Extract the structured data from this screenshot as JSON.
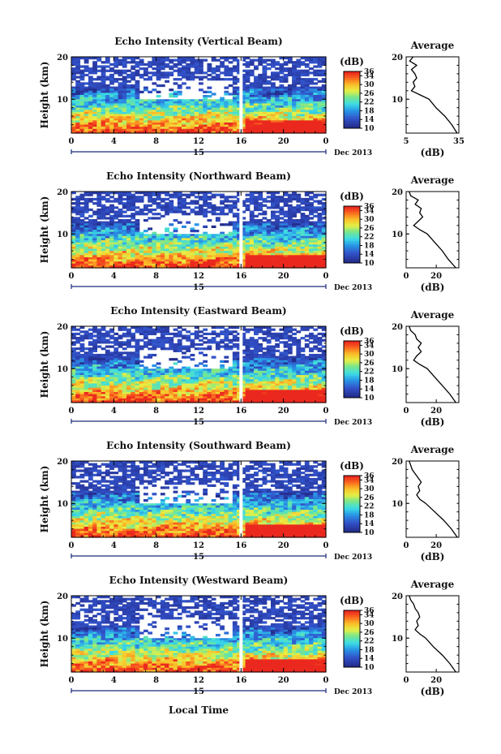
{
  "figure": {
    "shared_xlabel": "Local Time",
    "colorbar_unit": "(dB)",
    "colorbar_ticks": [
      "36",
      "34",
      "30",
      "26",
      "22",
      "18",
      "14",
      "10"
    ],
    "profile_title": "Average",
    "profile_xlabel": "(dB)",
    "ylabel": "Height (km)",
    "date_label": "Dec 2013",
    "day_label": "15"
  },
  "chart_data": [
    {
      "type": "heatmap",
      "title": "Echo Intensity (Vertical Beam)",
      "ylabel": "Height (km)",
      "xticks": [
        "0",
        "4",
        "8",
        "12",
        "16",
        "20",
        "0"
      ],
      "yticks": [
        "20",
        "10"
      ],
      "xlim": [
        0,
        24
      ],
      "ylim": [
        2,
        20
      ],
      "colorbar": {
        "label": "(dB)",
        "range": [
          10,
          36
        ],
        "ticks": [
          36,
          34,
          30,
          26,
          22,
          18,
          14,
          10
        ]
      },
      "profile": {
        "title": "Average",
        "xlabel": "(dB)",
        "xticks": [
          "5",
          "35"
        ],
        "xlim": [
          5,
          35
        ],
        "heights": [
          2,
          4,
          6,
          8,
          10,
          11,
          12,
          13,
          14,
          15,
          16,
          17,
          18,
          19,
          20
        ],
        "values": [
          34,
          31,
          27,
          22,
          18,
          13,
          8,
          10,
          9,
          11,
          10,
          8,
          11,
          7,
          9
        ]
      }
    },
    {
      "type": "heatmap",
      "title": "Echo Intensity (Northward Beam)",
      "ylabel": "Height (km)",
      "xticks": [
        "0",
        "4",
        "8",
        "12",
        "16",
        "20",
        "0"
      ],
      "yticks": [
        "20",
        "10"
      ],
      "xlim": [
        0,
        24
      ],
      "ylim": [
        2,
        20
      ],
      "colorbar": {
        "label": "(dB)",
        "range": [
          10,
          36
        ],
        "ticks": [
          36,
          34,
          30,
          26,
          22,
          18,
          14,
          10
        ]
      },
      "profile": {
        "title": "Average",
        "xlabel": "(dB)",
        "xticks": [
          "0",
          "20"
        ],
        "xlim": [
          0,
          35
        ],
        "heights": [
          2,
          4,
          6,
          8,
          10,
          11,
          12,
          13,
          14,
          15,
          16,
          17,
          18,
          19,
          20
        ],
        "values": [
          33,
          28,
          24,
          19,
          14,
          9,
          5,
          8,
          11,
          9,
          10,
          6,
          8,
          3,
          2
        ]
      }
    },
    {
      "type": "heatmap",
      "title": "Echo Intensity (Eastward Beam)",
      "ylabel": "Height (km)",
      "xticks": [
        "0",
        "4",
        "8",
        "12",
        "16",
        "20",
        "0"
      ],
      "yticks": [
        "20",
        "10"
      ],
      "xlim": [
        0,
        24
      ],
      "ylim": [
        2,
        20
      ],
      "colorbar": {
        "label": "(dB)",
        "range": [
          10,
          36
        ],
        "ticks": [
          36,
          34,
          30,
          26,
          22,
          18,
          14,
          10
        ]
      },
      "profile": {
        "title": "Average",
        "xlabel": "(dB)",
        "xticks": [
          "0",
          "20"
        ],
        "xlim": [
          0,
          35
        ],
        "heights": [
          2,
          4,
          6,
          8,
          10,
          11,
          12,
          13,
          14,
          15,
          16,
          17,
          18,
          19,
          20
        ],
        "values": [
          33,
          29,
          24,
          19,
          14,
          9,
          5,
          7,
          10,
          8,
          10,
          7,
          6,
          3,
          2
        ]
      }
    },
    {
      "type": "heatmap",
      "title": "Echo Intensity (Southward Beam)",
      "ylabel": "Height (km)",
      "xticks": [
        "0",
        "4",
        "8",
        "12",
        "16",
        "20",
        "0"
      ],
      "yticks": [
        "20",
        "10"
      ],
      "xlim": [
        0,
        24
      ],
      "ylim": [
        2,
        20
      ],
      "colorbar": {
        "label": "(dB)",
        "range": [
          10,
          36
        ],
        "ticks": [
          36,
          34,
          30,
          26,
          22,
          18,
          14,
          10
        ]
      },
      "profile": {
        "title": "Average",
        "xlabel": "(dB)",
        "xticks": [
          "0",
          "20"
        ],
        "xlim": [
          0,
          35
        ],
        "heights": [
          2,
          4,
          6,
          8,
          10,
          11,
          12,
          13,
          14,
          15,
          16,
          17,
          18,
          19,
          20
        ],
        "values": [
          34,
          30,
          25,
          19,
          13,
          9,
          7,
          9,
          8,
          10,
          8,
          6,
          4,
          3,
          2
        ]
      }
    },
    {
      "type": "heatmap",
      "title": "Echo Intensity (Westward Beam)",
      "ylabel": "Height (km)",
      "xticks": [
        "0",
        "4",
        "8",
        "12",
        "16",
        "20",
        "0"
      ],
      "yticks": [
        "20",
        "10"
      ],
      "xlim": [
        0,
        24
      ],
      "ylim": [
        2,
        20
      ],
      "colorbar": {
        "label": "(dB)",
        "range": [
          10,
          36
        ],
        "ticks": [
          36,
          34,
          30,
          26,
          22,
          18,
          14,
          10
        ]
      },
      "profile": {
        "title": "Average",
        "xlabel": "(dB)",
        "xticks": [
          "0",
          "20"
        ],
        "xlim": [
          0,
          35
        ],
        "heights": [
          2,
          4,
          6,
          8,
          10,
          11,
          12,
          13,
          14,
          15,
          16,
          17,
          18,
          19,
          20
        ],
        "values": [
          33,
          29,
          24,
          18,
          13,
          9,
          6,
          8,
          7,
          9,
          8,
          6,
          5,
          3,
          2
        ]
      }
    }
  ]
}
